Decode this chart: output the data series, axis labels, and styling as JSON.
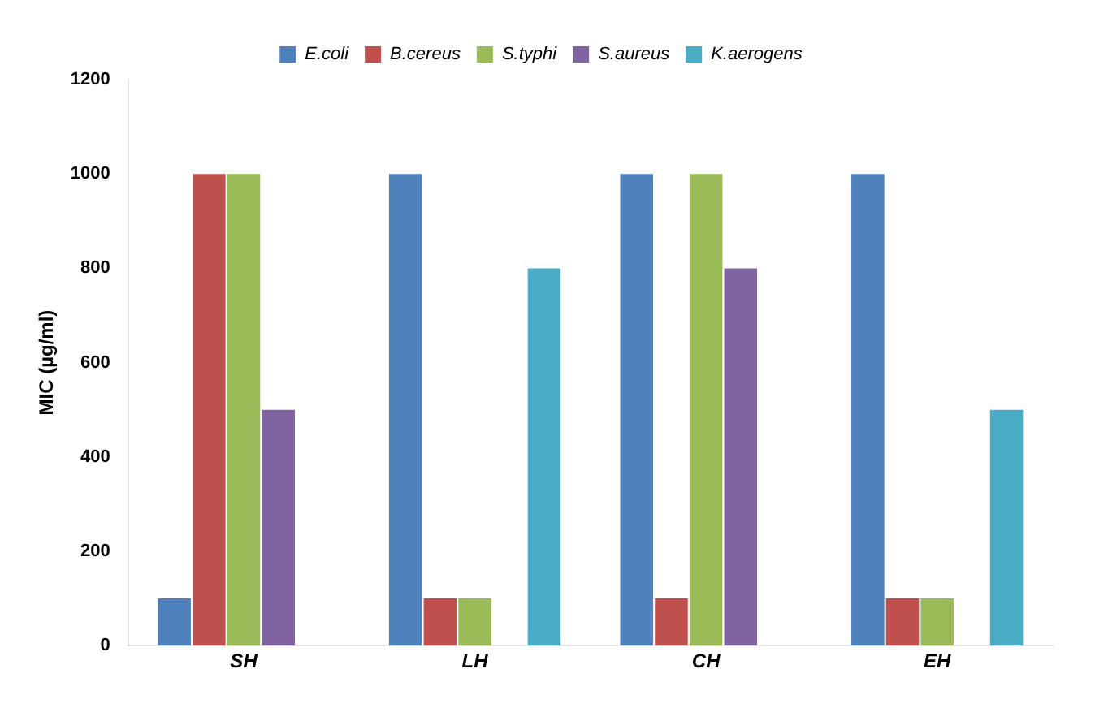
{
  "chart_data": {
    "type": "bar",
    "ylabel": "MIC (µg/ml)",
    "categories": [
      "SH",
      "LH",
      "CH",
      "EH"
    ],
    "series": [
      {
        "name": "E.coli",
        "color": "#4f81bd",
        "values": [
          100,
          1000,
          1000,
          1000
        ]
      },
      {
        "name": "B.cereus",
        "color": "#c0504d",
        "values": [
          1000,
          100,
          100,
          100
        ]
      },
      {
        "name": "S.typhi",
        "color": "#9bbb59",
        "values": [
          1000,
          100,
          1000,
          100
        ]
      },
      {
        "name": "S.aureus",
        "color": "#8064a2",
        "values": [
          500,
          null,
          800,
          null
        ]
      },
      {
        "name": "K.aerogens",
        "color": "#4bacc6",
        "values": [
          null,
          800,
          null,
          500
        ]
      }
    ],
    "ylim": [
      0,
      1200
    ],
    "yticks": [
      0,
      200,
      400,
      600,
      800,
      1000,
      1200
    ],
    "grid": false,
    "legend": "top"
  }
}
